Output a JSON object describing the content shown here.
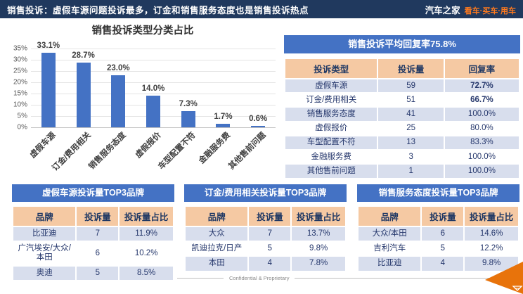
{
  "header": {
    "title": "销售投诉：虚假车源问题投诉最多，订金和销售服务态度也是销售投诉热点",
    "logo": "汽车之家",
    "logo_suffix": "看车·买车·用车"
  },
  "colors": {
    "header_bg": "#20395E",
    "accent_blue": "#4472C4",
    "bar_blue": "#4472C4",
    "table_header_peach": "#F5C9A3",
    "row_alt_blue": "#D8DEED",
    "highlight_red": "#FF0000",
    "logo_orange": "#FF7A1E",
    "corner_arrow_orange": "#E8730B"
  },
  "chart_data": {
    "type": "bar",
    "title": "销售投诉类型分类占比",
    "categories": [
      "虚假车源",
      "订金/费用相关",
      "销售服务态度",
      "虚假报价",
      "车型配置不符",
      "金融服务费",
      "其他售前问题"
    ],
    "values": [
      33.1,
      28.7,
      23.0,
      14.0,
      7.3,
      1.7,
      0.6
    ],
    "labels": [
      "33.1%",
      "28.7%",
      "23.0%",
      "14.0%",
      "7.3%",
      "1.7%",
      "0.6%"
    ],
    "yticks": [
      "0%",
      "5%",
      "10%",
      "15%",
      "20%",
      "25%",
      "30%",
      "35%"
    ],
    "ylim": [
      0,
      35
    ],
    "grid": true,
    "legend": "none",
    "bar_color": "#4472C4"
  },
  "summary_table": {
    "title": "销售投诉平均回复率75.8%",
    "columns": [
      "投诉类型",
      "投诉量",
      "回复率"
    ],
    "col_widths": [
      "40%",
      "28%",
      "32%"
    ],
    "rows": [
      [
        "虚假车源",
        "59",
        "72.7%"
      ],
      [
        "订金/费用相关",
        "51",
        "66.7%"
      ],
      [
        "销售服务态度",
        "41",
        "100.0%"
      ],
      [
        "虚假报价",
        "25",
        "80.0%"
      ],
      [
        "车型配置不符",
        "13",
        "83.3%"
      ],
      [
        "金融服务费",
        "3",
        "100.0%"
      ],
      [
        "其他售前问题",
        "1",
        "100.0%"
      ]
    ],
    "highlight_rows": [
      0,
      1
    ]
  },
  "top3_tables": [
    {
      "title": "虚假车源投诉量TOP3品牌",
      "columns": [
        "品牌",
        "投诉量",
        "投诉量占比"
      ],
      "col_widths": [
        "40%",
        "26%",
        "34%"
      ],
      "rows": [
        [
          "比亚迪",
          "7",
          "11.9%"
        ],
        [
          "广汽埃安/大众/本田",
          "6",
          "10.2%"
        ],
        [
          "奥迪",
          "5",
          "8.5%"
        ]
      ]
    },
    {
      "title": "订金/费用相关投诉量TOP3品牌",
      "columns": [
        "品牌",
        "投诉量",
        "投诉量占比"
      ],
      "col_widths": [
        "40%",
        "26%",
        "34%"
      ],
      "rows": [
        [
          "大众",
          "7",
          "13.7%"
        ],
        [
          "凯迪拉克/日产",
          "5",
          "9.8%"
        ],
        [
          "本田",
          "4",
          "7.8%"
        ]
      ]
    },
    {
      "title": "销售服务态度投诉量TOP3品牌",
      "columns": [
        "品牌",
        "投诉量",
        "投诉量占比"
      ],
      "col_widths": [
        "40%",
        "26%",
        "34%"
      ],
      "rows": [
        [
          "大众/本田",
          "6",
          "14.6%"
        ],
        [
          "吉利汽车",
          "5",
          "12.2%"
        ],
        [
          "比亚迪",
          "4",
          "9.8%"
        ]
      ]
    }
  ],
  "footer": {
    "text": "Confidential & Proprietary"
  }
}
